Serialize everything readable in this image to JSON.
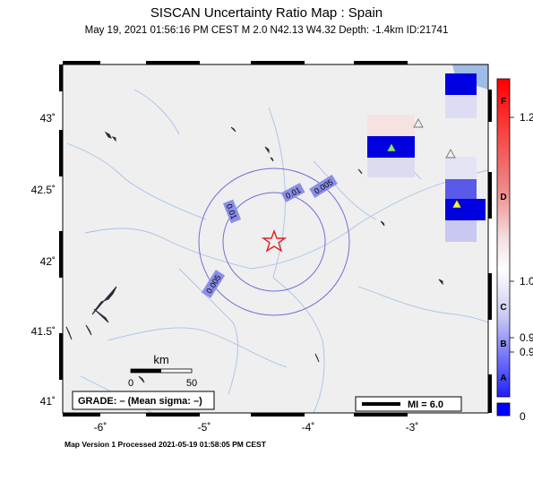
{
  "header": {
    "title": "SISCAN Uncertainty Ratio Map : Spain",
    "subtitle": "May 19, 2021 01:56:16 PM CEST   M 2.0   N42.13 W4.32   Depth: -1.4km   ID:21741"
  },
  "footer": "Map Version 1 Processed 2021-05-19 01:58:05 PM CEST",
  "map": {
    "lat_labels": [
      "43˚",
      "42.5˚",
      "42˚",
      "41.5˚",
      "41˚"
    ],
    "lon_labels": [
      "-6˚",
      "-5˚",
      "-4˚",
      "-3˚"
    ],
    "contour_labels": [
      "0.005",
      "0.01",
      "0.01",
      "0.005"
    ],
    "scale_bar": {
      "unit": "km",
      "ticks": [
        "0",
        "50"
      ]
    },
    "grade_box": "GRADE: – (Mean sigma: –)",
    "mi_legend": "MI = 6.0",
    "epicenter_marker": "star",
    "colors": {
      "land": "#efefef",
      "water": "#9fbce6",
      "contour": "#7070d8",
      "contour_label_bg": "#8a8ee8",
      "epicenter": "#e02020",
      "cell_blue": "#0000e0"
    }
  },
  "colorbar": {
    "tick_labels": [
      "1.2",
      "1.0",
      "0.9",
      "0.9",
      "0"
    ],
    "grade_letters": [
      "F",
      "D",
      "C",
      "B",
      "A"
    ],
    "colors": {
      "top": "#ff0000",
      "mid": "#ffffff",
      "bottom": "#0000ff"
    }
  }
}
